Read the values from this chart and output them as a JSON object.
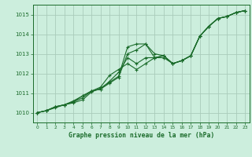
{
  "title": "Graphe pression niveau de la mer (hPa)",
  "bg_color": "#cceedd",
  "grid_color": "#aaccbb",
  "line_color": "#1a6b2a",
  "xlim": [
    -0.5,
    23.5
  ],
  "ylim": [
    1009.5,
    1015.5
  ],
  "yticks": [
    1010,
    1011,
    1012,
    1013,
    1014,
    1015
  ],
  "xticks": [
    0,
    1,
    2,
    3,
    4,
    5,
    6,
    7,
    8,
    9,
    10,
    11,
    12,
    13,
    14,
    15,
    16,
    17,
    18,
    19,
    20,
    21,
    22,
    23
  ],
  "series": [
    [
      1010.0,
      1010.1,
      1010.3,
      1010.4,
      1010.5,
      1010.65,
      1011.05,
      1011.25,
      1011.55,
      1011.85,
      1013.35,
      1013.5,
      1013.5,
      1013.0,
      1012.9,
      1012.5,
      1012.65,
      1012.9,
      1013.9,
      1014.4,
      1014.8,
      1014.9,
      1015.1,
      1015.2
    ],
    [
      1010.0,
      1010.1,
      1010.25,
      1010.4,
      1010.55,
      1010.75,
      1011.1,
      1011.2,
      1011.5,
      1011.8,
      1013.0,
      1013.2,
      1013.5,
      1012.8,
      1012.9,
      1012.5,
      1012.65,
      1012.9,
      1013.9,
      1014.4,
      1014.8,
      1014.9,
      1015.1,
      1015.2
    ],
    [
      1010.0,
      1010.1,
      1010.3,
      1010.4,
      1010.6,
      1010.85,
      1011.1,
      1011.2,
      1011.6,
      1012.05,
      1012.8,
      1012.5,
      1012.8,
      1012.8,
      1012.9,
      1012.5,
      1012.65,
      1012.9,
      1013.9,
      1014.4,
      1014.8,
      1014.9,
      1015.1,
      1015.2
    ],
    [
      1010.0,
      1010.1,
      1010.3,
      1010.4,
      1010.55,
      1010.85,
      1011.1,
      1011.3,
      1011.9,
      1012.2,
      1012.5,
      1012.2,
      1012.5,
      1012.8,
      1012.8,
      1012.5,
      1012.65,
      1012.9,
      1013.9,
      1014.4,
      1014.8,
      1014.9,
      1015.1,
      1015.2
    ]
  ]
}
